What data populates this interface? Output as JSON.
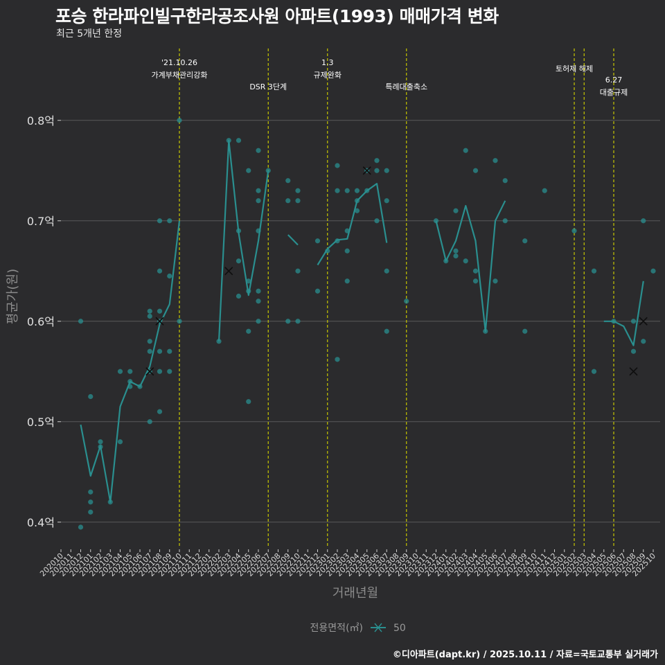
{
  "title": "포승 한라파인빌구한라공조사원 아파트(1993) 매매가격 변화",
  "subtitle": "최근 5개년 한정",
  "caption": "©디아파트(dapt.kr) / 2025.10.11 / 자료=국토교통부 실거래가",
  "colors": {
    "background": "#2b2b2d",
    "series": "#2a8f8f",
    "grid": "#5b5b5b",
    "event_line": "#c8c800",
    "text_muted": "#9a9a9a"
  },
  "chart_data": {
    "type": "line",
    "title": "포승 한라파인빌구한라공조사원 아파트(1993) 매매가격 변화",
    "xlabel": "거래년월",
    "ylabel": "평균가(원)",
    "ylim": [
      0.375,
      0.875
    ],
    "yticks": [
      0.4,
      0.5,
      0.6,
      0.7,
      0.8
    ],
    "ytick_labels": [
      "0.4억",
      "0.5억",
      "0.6억",
      "0.7억",
      "0.8억"
    ],
    "x_categories": [
      "202010",
      "202011",
      "202012",
      "202101",
      "202102",
      "202103",
      "202104",
      "202105",
      "202106",
      "202107",
      "202108",
      "202109",
      "202110",
      "202111",
      "202112",
      "202201",
      "202202",
      "202203",
      "202204",
      "202205",
      "202206",
      "202207",
      "202208",
      "202209",
      "202210",
      "202211",
      "202212",
      "202301",
      "202302",
      "202303",
      "202304",
      "202305",
      "202306",
      "202307",
      "202308",
      "202309",
      "202310",
      "202311",
      "202312",
      "202401",
      "202402",
      "202403",
      "202404",
      "202405",
      "202406",
      "202407",
      "202408",
      "202409",
      "202410",
      "202411",
      "202412",
      "202501",
      "202502",
      "202503",
      "202504",
      "202505",
      "202506",
      "202507",
      "202508",
      "202509",
      "202510"
    ],
    "legend": {
      "title": "전용면적(㎡)",
      "label": "50"
    },
    "series": [
      {
        "name": "50",
        "line_segments": [
          [
            [
              2,
              0.497
            ],
            [
              3,
              0.446
            ],
            [
              4,
              0.476
            ],
            [
              5,
              0.42
            ],
            [
              6,
              0.515
            ],
            [
              7,
              0.54
            ],
            [
              8,
              0.535
            ],
            [
              9,
              0.555
            ],
            [
              10,
              0.597
            ],
            [
              11,
              0.617
            ],
            [
              12,
              0.7
            ]
          ],
          [
            [
              16,
              0.58
            ],
            [
              17,
              0.78
            ],
            [
              18,
              0.688
            ],
            [
              19,
              0.626
            ],
            [
              20,
              0.68
            ],
            [
              21,
              0.75
            ]
          ],
          [
            [
              23,
              0.686
            ],
            [
              24,
              0.676
            ]
          ],
          [
            [
              26,
              0.656
            ],
            [
              27,
              0.672
            ],
            [
              28,
              0.681
            ],
            [
              29,
              0.682
            ],
            [
              30,
              0.72
            ],
            [
              31,
              0.73
            ],
            [
              32,
              0.737
            ],
            [
              33,
              0.678
            ]
          ],
          [
            [
              38,
              0.7
            ],
            [
              39,
              0.66
            ],
            [
              40,
              0.68
            ],
            [
              41,
              0.715
            ],
            [
              42,
              0.68
            ],
            [
              43,
              0.59
            ],
            [
              44,
              0.7
            ],
            [
              45,
              0.72
            ]
          ],
          [
            [
              55,
              0.6
            ],
            [
              56,
              0.6
            ],
            [
              57,
              0.595
            ],
            [
              58,
              0.576
            ],
            [
              59,
              0.64
            ]
          ]
        ],
        "points": [
          [
            2,
            0.6
          ],
          [
            2,
            0.395
          ],
          [
            3,
            0.525
          ],
          [
            3,
            0.43
          ],
          [
            3,
            0.42
          ],
          [
            3,
            0.41
          ],
          [
            4,
            0.48
          ],
          [
            4,
            0.475
          ],
          [
            5,
            0.42
          ],
          [
            6,
            0.55
          ],
          [
            6,
            0.48
          ],
          [
            7,
            0.55
          ],
          [
            7,
            0.54
          ],
          [
            7,
            0.535
          ],
          [
            8,
            0.535
          ],
          [
            9,
            0.61
          ],
          [
            9,
            0.605
          ],
          [
            9,
            0.58
          ],
          [
            9,
            0.57
          ],
          [
            9,
            0.55
          ],
          [
            9,
            0.5
          ],
          [
            10,
            0.7
          ],
          [
            10,
            0.65
          ],
          [
            10,
            0.61
          ],
          [
            10,
            0.6
          ],
          [
            10,
            0.57
          ],
          [
            10,
            0.55
          ],
          [
            10,
            0.51
          ],
          [
            11,
            0.7
          ],
          [
            11,
            0.645
          ],
          [
            11,
            0.57
          ],
          [
            11,
            0.55
          ],
          [
            12,
            0.8
          ],
          [
            12,
            0.6
          ],
          [
            16,
            0.58
          ],
          [
            17,
            0.78
          ],
          [
            18,
            0.78
          ],
          [
            18,
            0.69
          ],
          [
            18,
            0.66
          ],
          [
            18,
            0.625
          ],
          [
            19,
            0.75
          ],
          [
            19,
            0.64
          ],
          [
            19,
            0.63
          ],
          [
            19,
            0.59
          ],
          [
            19,
            0.52
          ],
          [
            20,
            0.77
          ],
          [
            20,
            0.73
          ],
          [
            20,
            0.72
          ],
          [
            20,
            0.69
          ],
          [
            20,
            0.63
          ],
          [
            20,
            0.62
          ],
          [
            20,
            0.6
          ],
          [
            21,
            0.75
          ],
          [
            23,
            0.74
          ],
          [
            23,
            0.72
          ],
          [
            23,
            0.6
          ],
          [
            24,
            0.73
          ],
          [
            24,
            0.72
          ],
          [
            24,
            0.65
          ],
          [
            24,
            0.6
          ],
          [
            26,
            0.68
          ],
          [
            26,
            0.63
          ],
          [
            27,
            0.67
          ],
          [
            28,
            0.755
          ],
          [
            28,
            0.73
          ],
          [
            28,
            0.68
          ],
          [
            28,
            0.562
          ],
          [
            29,
            0.73
          ],
          [
            29,
            0.69
          ],
          [
            29,
            0.67
          ],
          [
            29,
            0.64
          ],
          [
            30,
            0.73
          ],
          [
            30,
            0.72
          ],
          [
            30,
            0.71
          ],
          [
            31,
            0.75
          ],
          [
            31,
            0.73
          ],
          [
            32,
            0.76
          ],
          [
            32,
            0.75
          ],
          [
            32,
            0.7
          ],
          [
            33,
            0.75
          ],
          [
            33,
            0.72
          ],
          [
            33,
            0.65
          ],
          [
            33,
            0.59
          ],
          [
            35,
            0.62
          ],
          [
            38,
            0.7
          ],
          [
            39,
            0.66
          ],
          [
            40,
            0.71
          ],
          [
            40,
            0.67
          ],
          [
            40,
            0.665
          ],
          [
            41,
            0.77
          ],
          [
            41,
            0.66
          ],
          [
            42,
            0.75
          ],
          [
            42,
            0.65
          ],
          [
            42,
            0.64
          ],
          [
            43,
            0.59
          ],
          [
            44,
            0.76
          ],
          [
            44,
            0.64
          ],
          [
            45,
            0.74
          ],
          [
            45,
            0.7
          ],
          [
            47,
            0.68
          ],
          [
            47,
            0.59
          ],
          [
            49,
            0.73
          ],
          [
            52,
            0.69
          ],
          [
            54,
            0.65
          ],
          [
            54,
            0.55
          ],
          [
            56,
            0.6
          ],
          [
            58,
            0.6
          ],
          [
            58,
            0.57
          ],
          [
            59,
            0.7
          ],
          [
            59,
            0.58
          ],
          [
            60,
            0.65
          ]
        ],
        "cross_markers": [
          [
            10,
            0.6
          ],
          [
            9,
            0.55
          ],
          [
            17,
            0.65
          ],
          [
            31,
            0.75
          ],
          [
            58,
            0.55
          ],
          [
            59,
            0.6
          ]
        ]
      }
    ],
    "events": [
      {
        "x": 12,
        "label_lines": [
          "'21.10.26",
          "가계부채관리강화"
        ],
        "row": 0
      },
      {
        "x": 21,
        "label_lines": [
          "DSR 3단계"
        ],
        "row": 1
      },
      {
        "x": 27,
        "label_lines": [
          "1.3",
          "규제완화"
        ],
        "row": 0
      },
      {
        "x": 35,
        "label_lines": [
          "특례대출축소"
        ],
        "row": 1
      },
      {
        "x": 52,
        "label_lines": [
          "토허제 해제"
        ],
        "row": 0,
        "align": "middle"
      },
      {
        "x": 53,
        "label_lines": [],
        "row": 0
      },
      {
        "x": 56,
        "label_lines": [
          "6.27",
          "대출규제"
        ],
        "row": 2
      }
    ]
  }
}
